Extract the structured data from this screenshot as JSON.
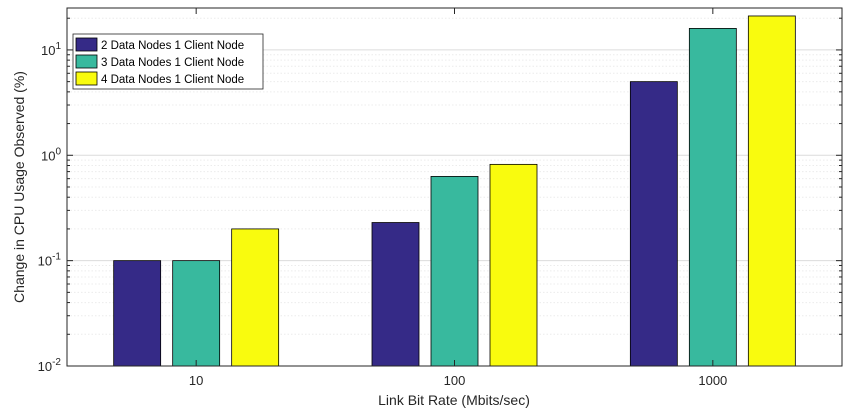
{
  "chart_data": {
    "type": "bar",
    "categories": [
      "10",
      "100",
      "1000"
    ],
    "series": [
      {
        "name": "2 Data Nodes 1 Client Node",
        "values": [
          0.1,
          0.23,
          5.0
        ],
        "color": "#352a87"
      },
      {
        "name": "3 Data Nodes 1 Client Node",
        "values": [
          0.1,
          0.63,
          16.0
        ],
        "color": "#38b99e"
      },
      {
        "name": "4 Data Nodes 1 Client Node",
        "values": [
          0.2,
          0.82,
          21.0
        ],
        "color": "#f9fb0e"
      }
    ],
    "xlabel": "Link Bit Rate (Mbits/sec)",
    "ylabel": "Change in CPU Usage Observed (%)",
    "yscale": "log",
    "ylim": [
      0.01,
      25
    ],
    "ytick_labels": [
      {
        "base": "10",
        "exp": "-2"
      },
      {
        "base": "10",
        "exp": "-1"
      },
      {
        "base": "10",
        "exp": "0"
      },
      {
        "base": "10",
        "exp": "1"
      }
    ],
    "grid": true,
    "legend_position": "top-left"
  }
}
